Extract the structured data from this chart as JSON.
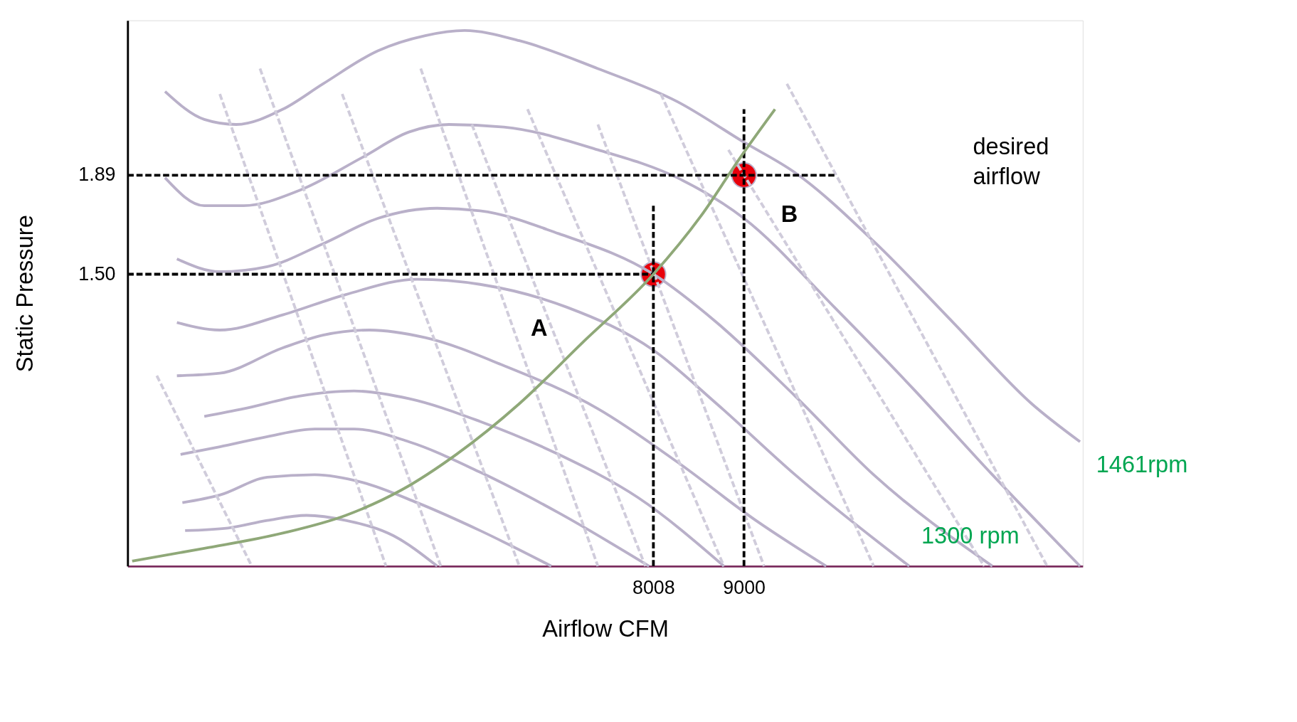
{
  "chart_data": {
    "type": "line",
    "xlabel": "Airflow CFM",
    "ylabel": "Static Pressure",
    "xlim": [
      2250,
      12710
    ],
    "ylim": [
      0.35,
      2.5
    ],
    "xticks": [
      8008,
      9000
    ],
    "yticks": [
      {
        "value": 1.5,
        "label": "1.50"
      },
      1.89
    ],
    "grid": false,
    "marker": "none",
    "series": [
      {
        "type": "line",
        "color": "#b9b0c9",
        "line_style": "solid",
        "x": [
          2660,
          3090,
          3440,
          3950,
          4390,
          4990,
          5510,
          5940,
          6540,
          7400,
          8270,
          9000,
          9560,
          10420,
          11290,
          12150,
          12680
        ],
        "values": [
          2.22,
          2.11,
          2.09,
          2.15,
          2.25,
          2.38,
          2.44,
          2.46,
          2.42,
          2.31,
          2.18,
          2.02,
          1.9,
          1.63,
          1.31,
          0.99,
          0.84
        ]
      },
      {
        "type": "line",
        "color": "#b9b0c9",
        "line_style": "solid",
        "x": [
          2660,
          3090,
          3520,
          4130,
          4820,
          5330,
          5770,
          6370,
          7400,
          8270,
          9000,
          9990,
          10850,
          11720,
          12680
        ],
        "values": [
          1.88,
          1.77,
          1.77,
          1.83,
          1.96,
          2.06,
          2.09,
          2.08,
          1.99,
          1.88,
          1.72,
          1.37,
          1.05,
          0.71,
          0.35
        ]
      },
      {
        "type": "line",
        "color": "#b9b0c9",
        "line_style": "solid",
        "x": [
          2790,
          3260,
          3780,
          4390,
          4990,
          5640,
          6110,
          6970,
          8008,
          8700,
          9560,
          10420,
          11720
        ],
        "values": [
          1.56,
          1.51,
          1.53,
          1.62,
          1.72,
          1.76,
          1.75,
          1.66,
          1.5,
          1.31,
          1.02,
          0.71,
          0.35
        ]
      },
      {
        "type": "line",
        "color": "#b9b0c9",
        "line_style": "solid",
        "x": [
          2790,
          3260,
          3950,
          4640,
          5420,
          6110,
          7060,
          8010,
          8700,
          9560,
          10810
        ],
        "values": [
          1.31,
          1.28,
          1.34,
          1.42,
          1.48,
          1.46,
          1.37,
          1.2,
          0.99,
          0.71,
          0.35
        ]
      },
      {
        "type": "line",
        "color": "#b9b0c9",
        "line_style": "solid",
        "x": [
          2790,
          3260,
          3950,
          4390,
          4900,
          5510,
          6370,
          7400,
          8270,
          9130,
          9900
        ],
        "values": [
          1.1,
          1.11,
          1.21,
          1.26,
          1.28,
          1.25,
          1.14,
          0.97,
          0.76,
          0.53,
          0.35
        ]
      },
      {
        "type": "line",
        "color": "#b9b0c9",
        "line_style": "solid",
        "x": [
          3090,
          3520,
          4130,
          4730,
          5330,
          6110,
          6970,
          7840,
          8780
        ],
        "values": [
          0.94,
          0.97,
          1.02,
          1.04,
          1.01,
          0.92,
          0.79,
          0.62,
          0.35
        ]
      },
      {
        "type": "line",
        "color": "#b9b0c9",
        "line_style": "solid",
        "x": [
          2830,
          3260,
          3780,
          4300,
          4730,
          5330,
          6110,
          6970,
          7960
        ],
        "values": [
          0.79,
          0.82,
          0.86,
          0.89,
          0.89,
          0.84,
          0.72,
          0.56,
          0.35
        ]
      },
      {
        "type": "line",
        "color": "#b9b0c9",
        "line_style": "solid",
        "x": [
          2850,
          3260,
          3780,
          4300,
          4820,
          5420,
          6110,
          6890
        ],
        "values": [
          0.6,
          0.63,
          0.7,
          0.71,
          0.68,
          0.6,
          0.49,
          0.35
        ]
      },
      {
        "type": "line",
        "color": "#b9b0c9",
        "line_style": "solid",
        "x": [
          2880,
          3350,
          3780,
          4210,
          4640,
          5160,
          5640
        ],
        "values": [
          0.49,
          0.5,
          0.53,
          0.55,
          0.53,
          0.47,
          0.35
        ]
      },
      {
        "type": "line",
        "color": "#d0ccdb",
        "line_style": "dashed",
        "x": [
          3260,
          5080
        ],
        "values": [
          2.21,
          0.35
        ]
      },
      {
        "type": "line",
        "color": "#d0ccdb",
        "line_style": "dashed",
        "x": [
          3700,
          5680
        ],
        "values": [
          2.31,
          0.35
        ]
      },
      {
        "type": "line",
        "color": "#d0ccdb",
        "line_style": "dashed",
        "x": [
          4600,
          6540
        ],
        "values": [
          2.21,
          0.35
        ]
      },
      {
        "type": "line",
        "color": "#d0ccdb",
        "line_style": "dashed",
        "x": [
          5460,
          7400
        ],
        "values": [
          2.31,
          0.35
        ]
      },
      {
        "type": "line",
        "color": "#d0ccdb",
        "line_style": "dashed",
        "x": [
          6020,
          7920
        ],
        "values": [
          2.09,
          0.35
        ]
      },
      {
        "type": "line",
        "color": "#d0ccdb",
        "line_style": "dashed",
        "x": [
          6630,
          8780
        ],
        "values": [
          2.15,
          0.35
        ]
      },
      {
        "type": "line",
        "color": "#d0ccdb",
        "line_style": "dashed",
        "x": [
          7400,
          9220
        ],
        "values": [
          2.09,
          0.35
        ]
      },
      {
        "type": "line",
        "color": "#d0ccdb",
        "line_style": "dashed",
        "x": [
          8090,
          10420
        ],
        "values": [
          2.21,
          0.35
        ]
      },
      {
        "type": "line",
        "color": "#d0ccdb",
        "line_style": "dashed",
        "x": [
          8830,
          11630
        ],
        "values": [
          1.99,
          0.35
        ]
      },
      {
        "type": "line",
        "color": "#d0ccdb",
        "line_style": "dashed",
        "x": [
          9470,
          12320
        ],
        "values": [
          2.25,
          0.35
        ]
      },
      {
        "type": "line",
        "color": "#d0ccdb",
        "line_style": "dashed",
        "x": [
          2570,
          3610
        ],
        "values": [
          1.1,
          0.35
        ]
      },
      {
        "type": "line",
        "color": "#000000",
        "line_style": "dashed",
        "x": [
          2250,
          9990
        ],
        "values": [
          1.89,
          1.89
        ]
      },
      {
        "type": "line",
        "color": "#000000",
        "line_style": "dashed",
        "x": [
          2250,
          8008
        ],
        "values": [
          1.5,
          1.5
        ]
      },
      {
        "type": "line",
        "color": "#000000",
        "line_style": "dashed",
        "x": [
          8008,
          8008
        ],
        "values": [
          0.35,
          1.77
        ]
      },
      {
        "type": "line",
        "color": "#000000",
        "line_style": "dashed",
        "x": [
          9000,
          9000
        ],
        "values": [
          0.35,
          2.15
        ]
      },
      {
        "type": "line",
        "color": "#8fa878",
        "line_style": "solid",
        "x": [
          2300,
          3090,
          3950,
          4640,
          5250,
          5850,
          6540,
          7230,
          8008,
          8530,
          8960,
          9340
        ],
        "values": [
          0.37,
          0.42,
          0.48,
          0.55,
          0.65,
          0.79,
          0.99,
          1.23,
          1.5,
          1.73,
          1.96,
          2.15
        ]
      },
      {
        "type": "scatter",
        "color": "#e8000b",
        "marker": "circle",
        "x": [
          8008,
          9000
        ],
        "values": [
          1.5,
          1.89
        ]
      }
    ],
    "annotations": [
      "A",
      "B",
      "desired\nairflow",
      "1300 rpm",
      "1461rpm"
    ]
  }
}
